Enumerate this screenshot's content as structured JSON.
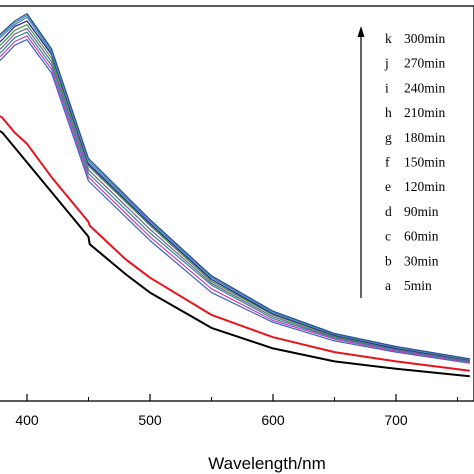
{
  "chart_data": {
    "type": "line",
    "title": "",
    "xlabel": "Wavelength/nm",
    "ylabel": "",
    "xlim": [
      370,
      760
    ],
    "ylim": [
      0,
      1
    ],
    "x_ticks": [
      400,
      500,
      600,
      700
    ],
    "y_ticks": [],
    "grid": false,
    "legend_position": "top-right",
    "arrow": "up",
    "legend": [
      {
        "letter": "k",
        "label": "300min"
      },
      {
        "letter": "j",
        "label": "270min"
      },
      {
        "letter": "i",
        "label": "240min"
      },
      {
        "letter": "h",
        "label": "210min"
      },
      {
        "letter": "g",
        "label": "180min"
      },
      {
        "letter": "f",
        "label": "150min"
      },
      {
        "letter": "e",
        "label": "120min"
      },
      {
        "letter": "d",
        "label": "90min"
      },
      {
        "letter": "c",
        "label": "60min"
      },
      {
        "letter": "b",
        "label": "30min"
      },
      {
        "letter": "a",
        "label": "5min"
      }
    ],
    "series": [
      {
        "label": "a",
        "color": "#000000",
        "x": [
          370,
          380,
          390,
          400,
          420,
          450,
          451,
          480,
          500,
          550,
          600,
          650,
          700,
          760
        ],
        "y": [
          0.72,
          0.7,
          0.66,
          0.62,
          0.54,
          0.42,
          0.4,
          0.32,
          0.27,
          0.175,
          0.12,
          0.085,
          0.065,
          0.045
        ]
      },
      {
        "label": "b",
        "color": "#e8141c",
        "x": [
          370,
          380,
          390,
          400,
          420,
          450,
          451,
          480,
          500,
          550,
          600,
          650,
          700,
          760
        ],
        "y": [
          0.76,
          0.74,
          0.7,
          0.67,
          0.58,
          0.46,
          0.45,
          0.36,
          0.31,
          0.21,
          0.15,
          0.11,
          0.085,
          0.06
        ]
      },
      {
        "label": "c",
        "color": "#3a60c8",
        "x": [
          370,
          380,
          390,
          400,
          420,
          450,
          500,
          550,
          600,
          650,
          700,
          760
        ],
        "y": [
          0.87,
          0.9,
          0.935,
          0.95,
          0.86,
          0.57,
          0.41,
          0.27,
          0.19,
          0.14,
          0.11,
          0.08
        ]
      },
      {
        "label": "d",
        "color": "#c040c0",
        "x": [
          370,
          380,
          390,
          400,
          420,
          450,
          500,
          550,
          600,
          650,
          700,
          760
        ],
        "y": [
          0.88,
          0.91,
          0.945,
          0.96,
          0.87,
          0.58,
          0.42,
          0.28,
          0.195,
          0.145,
          0.112,
          0.082
        ]
      },
      {
        "label": "e",
        "color": "#2a8a8a",
        "x": [
          370,
          380,
          390,
          400,
          420,
          450,
          500,
          550,
          600,
          650,
          700,
          760
        ],
        "y": [
          0.89,
          0.92,
          0.955,
          0.97,
          0.88,
          0.59,
          0.43,
          0.29,
          0.2,
          0.148,
          0.115,
          0.084
        ]
      },
      {
        "label": "f",
        "color": "#7a5a9a",
        "x": [
          370,
          380,
          390,
          400,
          420,
          450,
          500,
          550,
          600,
          650,
          700,
          760
        ],
        "y": [
          0.9,
          0.93,
          0.965,
          0.98,
          0.89,
          0.6,
          0.44,
          0.295,
          0.205,
          0.15,
          0.117,
          0.086
        ]
      },
      {
        "label": "g",
        "color": "#3c9a3c",
        "x": [
          370,
          380,
          390,
          400,
          420,
          450,
          500,
          550,
          600,
          650,
          700,
          760
        ],
        "y": [
          0.91,
          0.94,
          0.975,
          0.99,
          0.9,
          0.61,
          0.45,
          0.3,
          0.21,
          0.153,
          0.119,
          0.088
        ]
      },
      {
        "label": "h",
        "color": "#1a1a8a",
        "x": [
          370,
          380,
          390,
          400,
          420,
          450,
          500,
          550,
          600,
          650,
          700,
          760
        ],
        "y": [
          0.92,
          0.95,
          0.985,
          1.0,
          0.91,
          0.615,
          0.455,
          0.305,
          0.213,
          0.155,
          0.12,
          0.089
        ]
      },
      {
        "label": "i",
        "color": "#6a7ad0",
        "x": [
          370,
          380,
          390,
          400,
          420,
          450,
          500,
          550,
          600,
          650,
          700,
          760
        ],
        "y": [
          0.93,
          0.96,
          0.99,
          1.01,
          0.915,
          0.62,
          0.46,
          0.31,
          0.215,
          0.157,
          0.122,
          0.09
        ]
      },
      {
        "label": "j",
        "color": "#40a0a0",
        "x": [
          370,
          380,
          390,
          400,
          420,
          450,
          500,
          550,
          600,
          650,
          700,
          760
        ],
        "y": [
          0.935,
          0.965,
          0.995,
          1.015,
          0.92,
          0.625,
          0.463,
          0.312,
          0.217,
          0.158,
          0.123,
          0.091
        ]
      },
      {
        "label": "k",
        "color": "#2a4a9a",
        "x": [
          370,
          380,
          390,
          400,
          420,
          450,
          500,
          550,
          600,
          650,
          700,
          760
        ],
        "y": [
          0.94,
          0.97,
          1.0,
          1.02,
          0.925,
          0.63,
          0.466,
          0.315,
          0.22,
          0.16,
          0.125,
          0.092
        ]
      }
    ]
  }
}
